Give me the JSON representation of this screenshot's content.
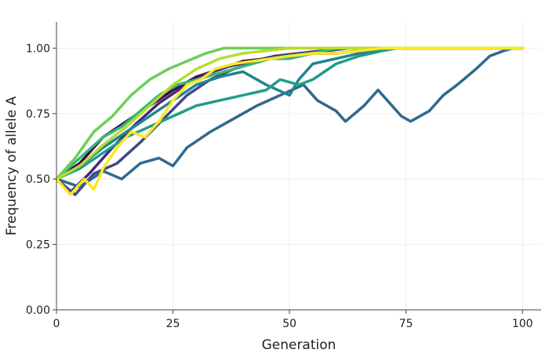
{
  "chart_data": {
    "type": "line",
    "title": "",
    "xlabel": "Generation",
    "ylabel": "Frequency of allele A",
    "xlim": [
      0,
      104
    ],
    "ylim": [
      0,
      1.1
    ],
    "x_ticks": [
      0,
      25,
      50,
      75,
      100
    ],
    "x_tick_labels": [
      "0",
      "25",
      "50",
      "75",
      "100"
    ],
    "y_ticks": [
      0,
      0.25,
      0.5,
      0.75,
      1.0
    ],
    "y_tick_labels": [
      "0.00",
      "0.25",
      "0.50",
      "0.75",
      "1.00"
    ],
    "grid": true,
    "legend": "none",
    "colormap": "viridis",
    "series": [
      {
        "color": "#440154",
        "points": [
          [
            0,
            0.5
          ],
          [
            5,
            0.56
          ],
          [
            10,
            0.66
          ],
          [
            15,
            0.72
          ],
          [
            20,
            0.78
          ],
          [
            25,
            0.84
          ],
          [
            30,
            0.89
          ],
          [
            35,
            0.92
          ],
          [
            40,
            0.95
          ],
          [
            45,
            0.96
          ],
          [
            50,
            0.97
          ],
          [
            55,
            0.98
          ],
          [
            60,
            0.98
          ],
          [
            65,
            0.99
          ],
          [
            70,
            1.0
          ],
          [
            100,
            1.0
          ]
        ]
      },
      {
        "color": "#482878",
        "points": [
          [
            0,
            0.5
          ],
          [
            3,
            0.45
          ],
          [
            7,
            0.52
          ],
          [
            12,
            0.62
          ],
          [
            17,
            0.71
          ],
          [
            22,
            0.79
          ],
          [
            27,
            0.85
          ],
          [
            32,
            0.9
          ],
          [
            37,
            0.93
          ],
          [
            42,
            0.95
          ],
          [
            47,
            0.97
          ],
          [
            52,
            0.98
          ],
          [
            57,
            0.99
          ],
          [
            62,
            1.0
          ],
          [
            100,
            1.0
          ]
        ]
      },
      {
        "color": "#3e4989",
        "points": [
          [
            0,
            0.5
          ],
          [
            4,
            0.44
          ],
          [
            8,
            0.52
          ],
          [
            13,
            0.56
          ],
          [
            18,
            0.64
          ],
          [
            23,
            0.73
          ],
          [
            28,
            0.82
          ],
          [
            33,
            0.88
          ],
          [
            38,
            0.92
          ],
          [
            43,
            0.95
          ],
          [
            48,
            0.97
          ],
          [
            53,
            0.98
          ],
          [
            58,
            0.99
          ],
          [
            63,
            1.0
          ],
          [
            100,
            1.0
          ]
        ]
      },
      {
        "color": "#31688e",
        "points": [
          [
            0,
            0.5
          ],
          [
            5,
            0.47
          ],
          [
            10,
            0.53
          ],
          [
            14,
            0.5
          ],
          [
            18,
            0.56
          ],
          [
            22,
            0.58
          ],
          [
            25,
            0.55
          ],
          [
            28,
            0.62
          ],
          [
            33,
            0.68
          ],
          [
            38,
            0.73
          ],
          [
            43,
            0.78
          ],
          [
            48,
            0.82
          ],
          [
            53,
            0.86
          ],
          [
            56,
            0.8
          ],
          [
            60,
            0.76
          ],
          [
            62,
            0.72
          ],
          [
            66,
            0.78
          ],
          [
            69,
            0.84
          ],
          [
            71,
            0.8
          ],
          [
            74,
            0.74
          ],
          [
            76,
            0.72
          ],
          [
            80,
            0.76
          ],
          [
            83,
            0.82
          ],
          [
            86,
            0.86
          ],
          [
            90,
            0.92
          ],
          [
            93,
            0.97
          ],
          [
            96,
            0.99
          ],
          [
            98,
            1.0
          ],
          [
            100,
            1.0
          ]
        ]
      },
      {
        "color": "#26828e",
        "points": [
          [
            0,
            0.5
          ],
          [
            5,
            0.55
          ],
          [
            10,
            0.62
          ],
          [
            15,
            0.68
          ],
          [
            20,
            0.74
          ],
          [
            25,
            0.8
          ],
          [
            30,
            0.86
          ],
          [
            35,
            0.89
          ],
          [
            40,
            0.91
          ],
          [
            45,
            0.86
          ],
          [
            50,
            0.82
          ],
          [
            52,
            0.88
          ],
          [
            55,
            0.94
          ],
          [
            60,
            0.96
          ],
          [
            65,
            0.98
          ],
          [
            70,
            0.99
          ],
          [
            73,
            1.0
          ],
          [
            100,
            1.0
          ]
        ]
      },
      {
        "color": "#1f9e89",
        "points": [
          [
            0,
            0.5
          ],
          [
            5,
            0.54
          ],
          [
            10,
            0.6
          ],
          [
            15,
            0.66
          ],
          [
            20,
            0.7
          ],
          [
            25,
            0.74
          ],
          [
            30,
            0.78
          ],
          [
            35,
            0.8
          ],
          [
            40,
            0.82
          ],
          [
            45,
            0.84
          ],
          [
            48,
            0.88
          ],
          [
            52,
            0.86
          ],
          [
            55,
            0.88
          ],
          [
            60,
            0.94
          ],
          [
            65,
            0.97
          ],
          [
            70,
            0.99
          ],
          [
            72,
            1.0
          ],
          [
            100,
            1.0
          ]
        ]
      },
      {
        "color": "#35b779",
        "points": [
          [
            0,
            0.5
          ],
          [
            5,
            0.58
          ],
          [
            10,
            0.66
          ],
          [
            14,
            0.7
          ],
          [
            18,
            0.76
          ],
          [
            22,
            0.82
          ],
          [
            26,
            0.86
          ],
          [
            30,
            0.88
          ],
          [
            34,
            0.9
          ],
          [
            38,
            0.92
          ],
          [
            42,
            0.94
          ],
          [
            46,
            0.96
          ],
          [
            50,
            0.96
          ],
          [
            55,
            0.98
          ],
          [
            60,
            1.0
          ],
          [
            100,
            1.0
          ]
        ]
      },
      {
        "color": "#6ece58",
        "points": [
          [
            0,
            0.5
          ],
          [
            4,
            0.58
          ],
          [
            8,
            0.68
          ],
          [
            12,
            0.74
          ],
          [
            16,
            0.82
          ],
          [
            20,
            0.88
          ],
          [
            24,
            0.92
          ],
          [
            28,
            0.95
          ],
          [
            32,
            0.98
          ],
          [
            36,
            1.0
          ],
          [
            100,
            1.0
          ]
        ]
      },
      {
        "color": "#b5de2b",
        "points": [
          [
            0,
            0.5
          ],
          [
            5,
            0.55
          ],
          [
            10,
            0.63
          ],
          [
            15,
            0.7
          ],
          [
            20,
            0.78
          ],
          [
            25,
            0.86
          ],
          [
            30,
            0.92
          ],
          [
            35,
            0.96
          ],
          [
            40,
            0.98
          ],
          [
            45,
            0.99
          ],
          [
            50,
            1.0
          ],
          [
            100,
            1.0
          ]
        ]
      },
      {
        "color": "#fde725",
        "points": [
          [
            0,
            0.5
          ],
          [
            3,
            0.44
          ],
          [
            6,
            0.5
          ],
          [
            8,
            0.46
          ],
          [
            10,
            0.54
          ],
          [
            13,
            0.62
          ],
          [
            16,
            0.68
          ],
          [
            19,
            0.66
          ],
          [
            22,
            0.72
          ],
          [
            25,
            0.8
          ],
          [
            28,
            0.86
          ],
          [
            31,
            0.88
          ],
          [
            34,
            0.92
          ],
          [
            38,
            0.94
          ],
          [
            42,
            0.95
          ],
          [
            46,
            0.96
          ],
          [
            50,
            0.97
          ],
          [
            55,
            0.98
          ],
          [
            60,
            0.98
          ],
          [
            65,
            0.99
          ],
          [
            70,
            1.0
          ],
          [
            100,
            1.0
          ]
        ]
      }
    ]
  }
}
